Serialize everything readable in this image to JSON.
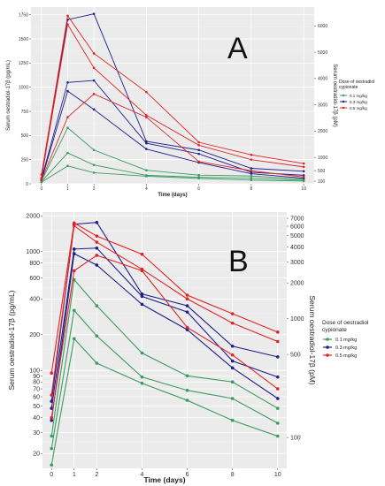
{
  "chart_data": [
    {
      "type": "line",
      "panel_label": "A",
      "xlabel": "Time (days)",
      "ylabel": "Serum oestradiol-17β (pg/mL)",
      "ylabel_right": "Serum oestradiol-17β (pM)",
      "x_ticks": [
        "0",
        "1",
        "2",
        "4",
        "6",
        "8",
        "10"
      ],
      "y_ticks": [
        "0",
        "250",
        "500",
        "750",
        "1000",
        "1250",
        "1500",
        "1750"
      ],
      "y_right_ticks": [
        "100",
        "500",
        "1000",
        "2000",
        "3000",
        "4000",
        "5000",
        "6000"
      ],
      "xlim": [
        -0.4,
        10.4
      ],
      "ylim": [
        0,
        1830
      ],
      "y_scale": "linear",
      "legend_position": "right",
      "legend_title": [
        "Dose of oestradiol",
        "cypionate"
      ],
      "grid": true,
      "series": [
        {
          "name": "0.1 mg/kg",
          "color": "#3c9a5f",
          "x": [
            0,
            1,
            2,
            4,
            6,
            8,
            10
          ],
          "y": [
            28,
            580,
            350,
            140,
            90,
            80,
            48
          ]
        },
        {
          "name": "0.1 mg/kg",
          "color": "#3c9a5f",
          "x": [
            0,
            1,
            2,
            4,
            6,
            8,
            10
          ],
          "y": [
            22,
            320,
            195,
            88,
            68,
            58,
            36
          ]
        },
        {
          "name": "0.1 mg/kg",
          "color": "#3c9a5f",
          "x": [
            0,
            1,
            2,
            4,
            6,
            8,
            10
          ],
          "y": [
            16,
            185,
            115,
            78,
            56,
            38,
            28
          ]
        },
        {
          "name": "0.3 mg/kg",
          "color": "#1e1e8c",
          "x": [
            0,
            1,
            2,
            4,
            6,
            8,
            10
          ],
          "y": [
            55,
            1700,
            1760,
            440,
            350,
            160,
            130
          ]
        },
        {
          "name": "0.3 mg/kg",
          "color": "#1e1e8c",
          "x": [
            0,
            1,
            2,
            4,
            6,
            8,
            10
          ],
          "y": [
            48,
            1050,
            1070,
            420,
            310,
            120,
            88
          ]
        },
        {
          "name": "0.3 mg/kg",
          "color": "#1e1e8c",
          "x": [
            0,
            1,
            2,
            4,
            6,
            8,
            10
          ],
          "y": [
            38,
            960,
            770,
            360,
            220,
            105,
            58
          ]
        },
        {
          "name": "0.5 mg/kg",
          "color": "#e02424",
          "x": [
            0,
            1,
            2,
            4,
            6,
            8,
            10
          ],
          "y": [
            95,
            1740,
            1350,
            950,
            430,
            300,
            210
          ]
        },
        {
          "name": "0.5 mg/kg",
          "color": "#e02424",
          "x": [
            0,
            1,
            2,
            4,
            6,
            8,
            10
          ],
          "y": [
            62,
            1650,
            1200,
            710,
            400,
            250,
            175
          ]
        },
        {
          "name": "0.5 mg/kg",
          "color": "#e02424",
          "x": [
            0,
            1,
            2,
            4,
            6,
            8,
            10
          ],
          "y": [
            40,
            690,
            930,
            690,
            230,
            135,
            70
          ]
        }
      ]
    },
    {
      "type": "line",
      "panel_label": "B",
      "xlabel": "Time (days)",
      "ylabel": "Serum oestradiol-17β (pg/mL)",
      "ylabel_right": "Serum oestradiol-17β (pM)",
      "x_ticks": [
        "0",
        "1",
        "2",
        "4",
        "6",
        "8",
        "10"
      ],
      "y_ticks": [
        "20",
        "30",
        "40",
        "50",
        "60",
        "70",
        "80",
        "90",
        "100",
        "200",
        "400",
        "600",
        "800",
        "1000",
        "2000"
      ],
      "y_right_ticks": [
        "100",
        "500",
        "1000",
        "2000",
        "3000",
        "4000",
        "5000",
        "6000",
        "7000"
      ],
      "xlim": [
        -0.4,
        10.4
      ],
      "ylim": [
        15,
        2150
      ],
      "y_scale": "log",
      "legend_position": "right",
      "legend_title": [
        "Dose of oestradiol",
        "cypionate"
      ],
      "grid": true,
      "series": [
        {
          "name": "0.1 mg/kg",
          "color": "#3c9a5f",
          "x": [
            0,
            1,
            2,
            4,
            6,
            8,
            10
          ],
          "y": [
            28,
            580,
            350,
            140,
            90,
            80,
            48
          ]
        },
        {
          "name": "0.1 mg/kg",
          "color": "#3c9a5f",
          "x": [
            0,
            1,
            2,
            4,
            6,
            8,
            10
          ],
          "y": [
            22,
            320,
            195,
            88,
            68,
            58,
            36
          ]
        },
        {
          "name": "0.1 mg/kg",
          "color": "#3c9a5f",
          "x": [
            0,
            1,
            2,
            4,
            6,
            8,
            10
          ],
          "y": [
            16,
            185,
            115,
            78,
            56,
            38,
            28
          ]
        },
        {
          "name": "0.3 mg/kg",
          "color": "#1e1e8c",
          "x": [
            0,
            1,
            2,
            4,
            6,
            8,
            10
          ],
          "y": [
            55,
            1700,
            1760,
            440,
            350,
            160,
            130
          ]
        },
        {
          "name": "0.3 mg/kg",
          "color": "#1e1e8c",
          "x": [
            0,
            1,
            2,
            4,
            6,
            8,
            10
          ],
          "y": [
            48,
            1050,
            1070,
            420,
            310,
            120,
            88
          ]
        },
        {
          "name": "0.3 mg/kg",
          "color": "#1e1e8c",
          "x": [
            0,
            1,
            2,
            4,
            6,
            8,
            10
          ],
          "y": [
            38,
            960,
            770,
            360,
            220,
            105,
            58
          ]
        },
        {
          "name": "0.5 mg/kg",
          "color": "#e02424",
          "x": [
            0,
            1,
            2,
            4,
            6,
            8,
            10
          ],
          "y": [
            95,
            1740,
            1350,
            950,
            430,
            300,
            210
          ]
        },
        {
          "name": "0.5 mg/kg",
          "color": "#e02424",
          "x": [
            0,
            1,
            2,
            4,
            6,
            8,
            10
          ],
          "y": [
            62,
            1650,
            1200,
            710,
            400,
            250,
            175
          ]
        },
        {
          "name": "0.5 mg/kg",
          "color": "#e02424",
          "x": [
            0,
            1,
            2,
            4,
            6,
            8,
            10
          ],
          "y": [
            40,
            690,
            930,
            690,
            230,
            135,
            70
          ]
        }
      ]
    }
  ],
  "legend": {
    "title": [
      "Dose of oestradiol",
      "cypionate"
    ],
    "items": [
      {
        "label": "0.1 mg/kg",
        "color": "#3c9a5f"
      },
      {
        "label": "0.3 mg/kg",
        "color": "#1e1e8c"
      },
      {
        "label": "0.5 mg/kg",
        "color": "#e02424"
      }
    ]
  }
}
